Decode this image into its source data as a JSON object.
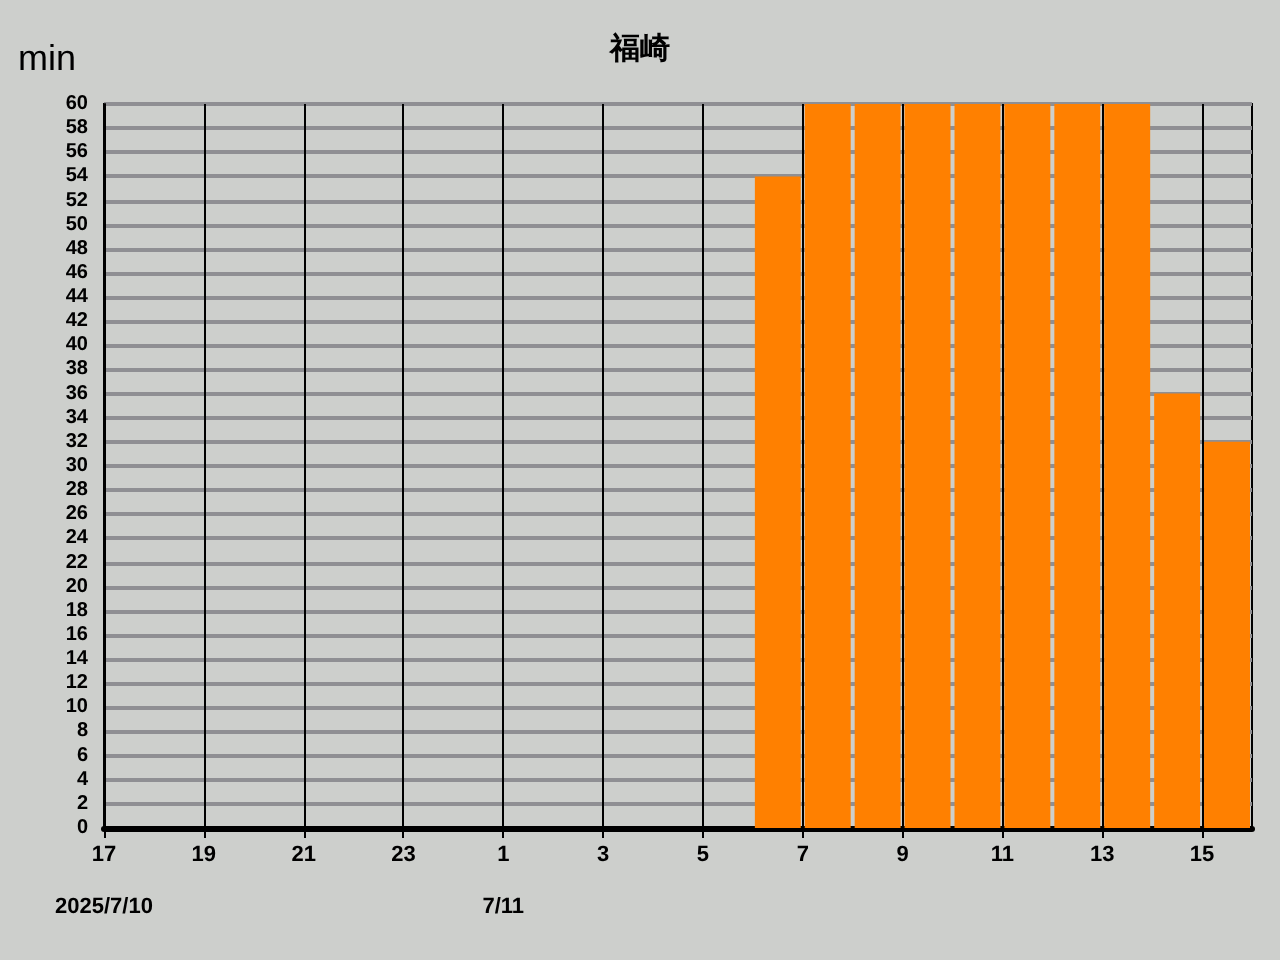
{
  "chart_data": {
    "type": "histogram",
    "title": "福崎",
    "ylabel": "min",
    "color": "#ff8000",
    "bins": [
      "2025-07-10T17:00",
      "2025-07-10T18:00",
      "2025-07-10T19:00",
      "2025-07-10T20:00",
      "2025-07-10T21:00",
      "2025-07-10T22:00",
      "2025-07-10T23:00",
      "2025-07-11T00:00",
      "2025-07-11T01:00",
      "2025-07-11T02:00",
      "2025-07-11T03:00",
      "2025-07-11T04:00",
      "2025-07-11T05:00",
      "2025-07-11T06:00",
      "2025-07-11T07:00",
      "2025-07-11T08:00",
      "2025-07-11T09:00",
      "2025-07-11T10:00",
      "2025-07-11T11:00",
      "2025-07-11T12:00",
      "2025-07-11T13:00",
      "2025-07-11T14:00",
      "2025-07-11T15:00",
      "2025-07-11T16:00"
    ],
    "values": [
      0,
      0,
      0,
      0,
      0,
      0,
      0,
      0,
      0,
      0,
      0,
      0,
      0,
      54,
      60,
      60,
      60,
      60,
      60,
      60,
      60,
      36,
      32
    ],
    "xlim": [
      "2025-07-10T17:00",
      "2025-07-11T16:00"
    ],
    "xticks": [
      {
        "value": "2025-07-10T17:00",
        "label": "17"
      },
      {
        "value": "2025-07-10T19:00",
        "label": "19"
      },
      {
        "value": "2025-07-10T21:00",
        "label": "21"
      },
      {
        "value": "2025-07-10T23:00",
        "label": "23"
      },
      {
        "value": "2025-07-11T01:00",
        "label": "1"
      },
      {
        "value": "2025-07-11T03:00",
        "label": "3"
      },
      {
        "value": "2025-07-11T05:00",
        "label": "5"
      },
      {
        "value": "2025-07-11T07:00",
        "label": "7"
      },
      {
        "value": "2025-07-11T09:00",
        "label": "9"
      },
      {
        "value": "2025-07-11T11:00",
        "label": "11"
      },
      {
        "value": "2025-07-11T13:00",
        "label": "13"
      },
      {
        "value": "2025-07-11T15:00",
        "label": "15"
      }
    ],
    "ylim": [
      0,
      60
    ],
    "yticks": [
      0,
      2,
      4,
      6,
      8,
      10,
      12,
      14,
      16,
      18,
      20,
      22,
      24,
      26,
      28,
      30,
      32,
      34,
      36,
      38,
      40,
      42,
      44,
      46,
      48,
      50,
      52,
      54,
      56,
      58,
      60
    ],
    "annotations": [
      "2025/7/10",
      "7/11"
    ],
    "grid": true
  }
}
